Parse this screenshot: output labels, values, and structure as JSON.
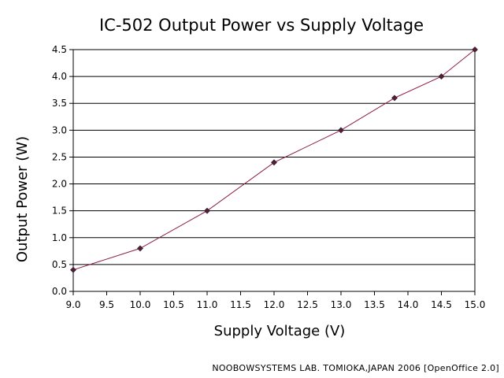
{
  "chart_data": {
    "type": "line",
    "title": "IC-502 Output Power vs Supply Voltage",
    "xlabel": "Supply Voltage (V)",
    "ylabel": "Output Power (W)",
    "xlim": [
      9.0,
      15.0
    ],
    "ylim": [
      0.0,
      4.5
    ],
    "x_ticks": [
      "9.0",
      "9.5",
      "10.0",
      "10.5",
      "11.0",
      "11.5",
      "12.0",
      "12.5",
      "13.0",
      "13.5",
      "14.0",
      "14.5",
      "15.0"
    ],
    "y_ticks": [
      "0.0",
      "0.5",
      "1.0",
      "1.5",
      "2.0",
      "2.5",
      "3.0",
      "3.5",
      "4.0",
      "4.5"
    ],
    "grid": "horizontal",
    "legend": "none",
    "series": [
      {
        "x": [
          9.0,
          10.0,
          11.0,
          12.0,
          13.0,
          13.8,
          14.5,
          15.0
        ],
        "y": [
          0.4,
          0.8,
          1.5,
          2.4,
          3.0,
          3.6,
          4.0,
          4.5
        ],
        "line_color": "#8b1a4a",
        "marker_color": "#5a1a3a"
      }
    ],
    "credit": "NOOBOWSYSTEMS LAB. TOMIOKA,JAPAN 2006 [OpenOffice 2.0]"
  }
}
